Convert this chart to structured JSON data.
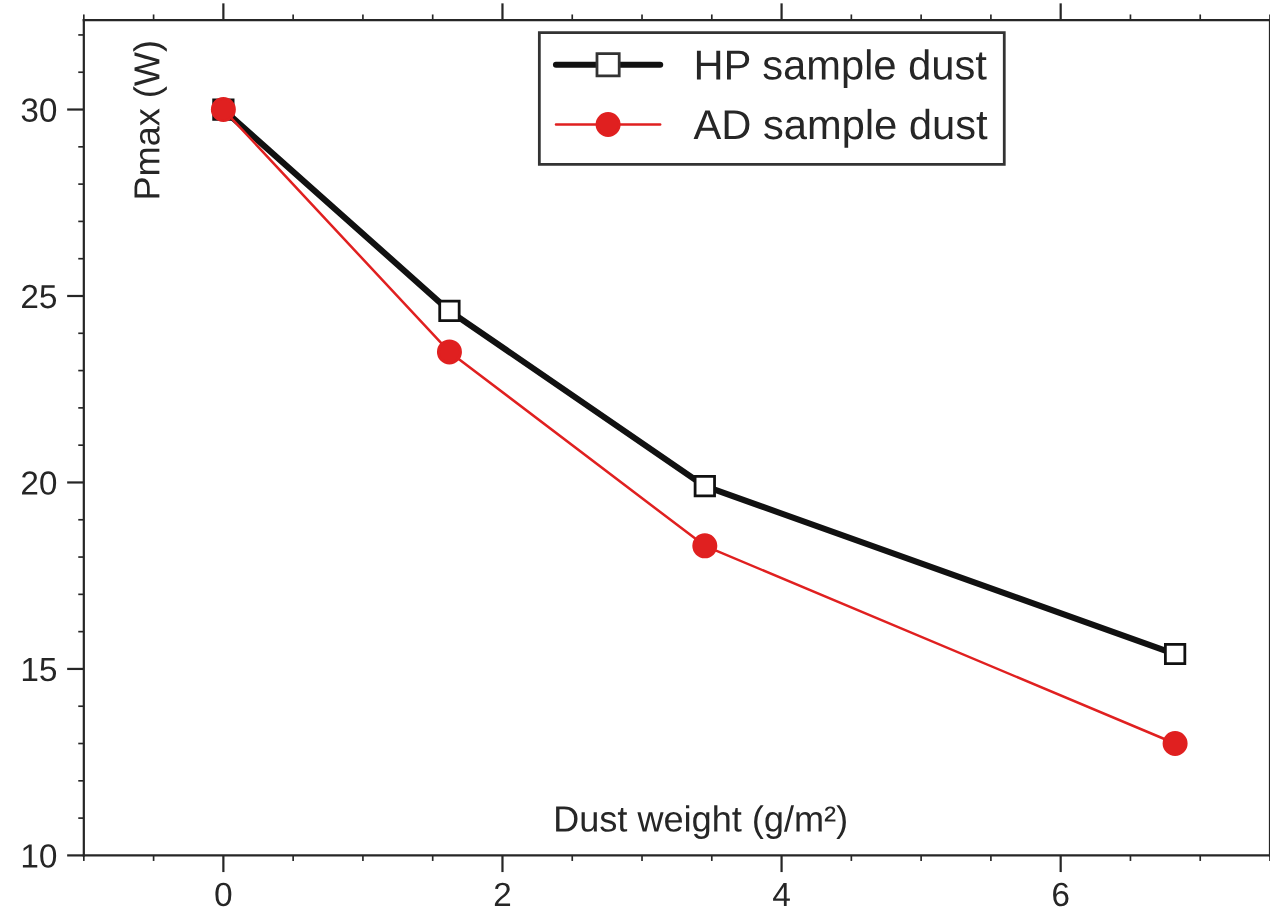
{
  "chart_data": {
    "type": "line",
    "xlabel": "Dust weight (g/m²)",
    "ylabel": "Pmax (W)",
    "x": [
      0,
      1.62,
      3.45,
      6.82
    ],
    "series": [
      {
        "name": "HP sample dust",
        "color": "#111111",
        "values": [
          30,
          24.6,
          19.9,
          15.4
        ],
        "marker": "square"
      },
      {
        "name": "AD sample dust",
        "color": "#e02020",
        "values": [
          30,
          23.5,
          18.3,
          13.0
        ],
        "marker": "circle"
      }
    ],
    "xlim": [
      -1,
      7.5
    ],
    "xticks": [
      0,
      2,
      4,
      6
    ],
    "ylim": [
      10,
      32.4
    ],
    "yticks": [
      10,
      15,
      20,
      25,
      30
    ],
    "legend": "top",
    "grid": false
  }
}
